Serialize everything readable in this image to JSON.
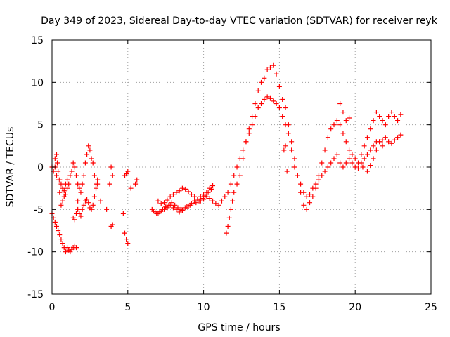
{
  "chart_data": {
    "type": "scatter",
    "title": "Day 349 of 2023, Sidereal Day-to-day VTEC variation (SDTVAR) for receiver reyk",
    "xlabel": "GPS time / hours",
    "ylabel": "SDTVAR / TECUs",
    "xlim": [
      0,
      25
    ],
    "ylim": [
      -15,
      15
    ],
    "x_ticks": [
      0,
      5,
      10,
      15,
      20,
      25
    ],
    "y_ticks": [
      -15,
      -10,
      -5,
      0,
      5,
      10,
      15
    ],
    "x_tick_labels": [
      "0",
      "5",
      "10",
      "15",
      "20",
      "25"
    ],
    "y_tick_labels": [
      "-15",
      "-10",
      "-5",
      "0",
      "5",
      "10",
      "15"
    ],
    "grid": true,
    "marker": "+",
    "series": [
      {
        "name": "reyk",
        "color": "#ff0000",
        "x": [
          0.0,
          0.1,
          0.2,
          0.3,
          0.35,
          0.4,
          0.5,
          0.6,
          0.7,
          0.8,
          0.9,
          1.0,
          1.1,
          1.2,
          1.3,
          1.4,
          1.5,
          1.6,
          1.7,
          1.8,
          1.9,
          2.0,
          2.1,
          2.2,
          2.3,
          2.4,
          2.5,
          2.6,
          2.7,
          2.8,
          2.9,
          3.0,
          0.0,
          0.1,
          0.2,
          0.3,
          0.4,
          0.5,
          0.6,
          0.7,
          0.8,
          0.9,
          1.0,
          1.1,
          1.2,
          1.3,
          1.4,
          1.5,
          1.6,
          1.7,
          1.8,
          1.9,
          2.0,
          2.1,
          2.2,
          2.3,
          2.4,
          2.5,
          2.6,
          2.7,
          2.8,
          2.9,
          3.0,
          0.2,
          0.3,
          0.4,
          0.5,
          0.6,
          0.7,
          0.8,
          0.9,
          1.0,
          1.4,
          1.5,
          1.6,
          1.7,
          3.2,
          3.6,
          3.8,
          3.9,
          4.0,
          3.9,
          4.0,
          4.7,
          4.8,
          4.9,
          5.0,
          4.8,
          4.9,
          5.0,
          5.5,
          5.6,
          5.2,
          6.6,
          6.8,
          7.0,
          7.2,
          7.4,
          7.6,
          7.8,
          8.0,
          8.2,
          8.4,
          8.6,
          8.8,
          9.0,
          9.2,
          9.4,
          9.6,
          9.8,
          10.0,
          10.2,
          10.4,
          10.6,
          6.7,
          6.9,
          7.1,
          7.3,
          7.5,
          7.7,
          7.9,
          8.1,
          8.3,
          8.5,
          8.7,
          8.9,
          9.1,
          9.3,
          9.5,
          9.7,
          9.9,
          10.1,
          10.3,
          10.5,
          7.0,
          7.2,
          7.4,
          7.6,
          7.8,
          8.0,
          8.2,
          8.4,
          8.6,
          8.8,
          9.0,
          9.2,
          9.4,
          9.6,
          9.8,
          10.0,
          10.2,
          10.4,
          10.6,
          10.8,
          11.0,
          11.2,
          11.4,
          11.6,
          11.8,
          12.0,
          12.2,
          12.4,
          12.6,
          12.8,
          13.0,
          13.2,
          13.4,
          13.6,
          13.8,
          14.0,
          14.2,
          14.4,
          14.6,
          14.8,
          15.0,
          15.2,
          15.4,
          15.6,
          15.8,
          16.0,
          16.2,
          16.4,
          16.6,
          16.8,
          17.0,
          17.2,
          17.4,
          17.6,
          17.8,
          18.0,
          18.2,
          18.4,
          18.6,
          18.8,
          19.0,
          19.2,
          19.4,
          19.6,
          19.8,
          20.0,
          20.2,
          20.4,
          20.6,
          20.8,
          21.0,
          21.2,
          21.4,
          21.6,
          21.8,
          22.0,
          22.2,
          22.4,
          22.6,
          22.8,
          23.0,
          11.5,
          11.6,
          11.7,
          11.8,
          11.9,
          12.0,
          12.2,
          12.4,
          12.6,
          12.8,
          13.0,
          13.2,
          13.4,
          13.6,
          13.8,
          14.0,
          14.2,
          14.4,
          14.6,
          14.8,
          15.0,
          15.2,
          15.4,
          15.6,
          15.8,
          16.0,
          16.2,
          16.4,
          16.6,
          16.8,
          17.0,
          17.2,
          17.4,
          17.6,
          17.8,
          18.0,
          18.2,
          18.4,
          18.6,
          18.8,
          19.0,
          19.2,
          19.4,
          19.6,
          19.8,
          20.0,
          20.2,
          20.4,
          20.6,
          20.8,
          21.0,
          21.2,
          21.4,
          21.6,
          21.8,
          22.0,
          22.2,
          22.4,
          22.6,
          22.8,
          23.0,
          15.3,
          15.4,
          15.5,
          19.0,
          19.2,
          19.4,
          19.6,
          20.5,
          20.8,
          21.0,
          21.2,
          21.4,
          21.6,
          21.8
        ],
        "y": [
          0.0,
          -0.5,
          1.0,
          -1.0,
          0.5,
          -0.5,
          -1.5,
          -2.0,
          -2.5,
          -2.8,
          -2.0,
          -1.5,
          -2.0,
          -1.0,
          -0.5,
          0.5,
          0.0,
          -1.0,
          -2.0,
          -2.5,
          -3.0,
          -2.0,
          -1.0,
          0.5,
          1.5,
          2.5,
          2.0,
          1.0,
          0.5,
          -1.0,
          -2.0,
          -1.5,
          -5.5,
          -6.0,
          -6.5,
          -7.0,
          -7.5,
          -8.0,
          -8.5,
          -9.0,
          -9.5,
          -10.0,
          -9.5,
          -9.8,
          -10.0,
          -9.7,
          -9.5,
          -9.3,
          -9.5,
          -5.0,
          -5.5,
          -5.8,
          -5.0,
          -4.5,
          -4.0,
          -3.8,
          -4.2,
          -4.8,
          -5.0,
          -4.5,
          -3.5,
          -2.5,
          -2.0,
          0.0,
          1.5,
          -1.5,
          -3.0,
          -4.5,
          -4.0,
          -3.5,
          -3.2,
          -2.5,
          -6.0,
          -6.2,
          -5.5,
          -4.0,
          -4.0,
          -5.0,
          -2.0,
          0.0,
          -1.0,
          -7.0,
          -6.8,
          -5.5,
          -7.8,
          -8.5,
          -9.0,
          -1.0,
          -0.8,
          -0.5,
          -2.0,
          -1.5,
          -2.5,
          -5.0,
          -5.3,
          -5.5,
          -5.2,
          -5.0,
          -4.8,
          -4.5,
          -4.8,
          -5.0,
          -5.3,
          -5.1,
          -4.8,
          -4.6,
          -4.3,
          -4.0,
          -3.8,
          -3.5,
          -3.2,
          -3.0,
          -2.5,
          -2.2,
          -5.2,
          -5.5,
          -5.3,
          -5.0,
          -4.7,
          -4.5,
          -4.2,
          -4.5,
          -4.8,
          -5.0,
          -4.8,
          -4.6,
          -4.5,
          -4.3,
          -4.2,
          -4.0,
          -3.7,
          -3.4,
          -3.0,
          -2.6,
          -4.0,
          -4.3,
          -4.2,
          -3.9,
          -3.5,
          -3.2,
          -3.0,
          -2.8,
          -2.5,
          -2.6,
          -2.9,
          -3.2,
          -3.5,
          -3.8,
          -4.0,
          -3.8,
          -3.5,
          -3.7,
          -4.0,
          -4.3,
          -4.5,
          -4.0,
          -3.5,
          -3.0,
          -2.0,
          -1.0,
          0.0,
          1.0,
          2.0,
          3.0,
          4.0,
          5.0,
          6.0,
          7.0,
          7.5,
          8.0,
          8.3,
          8.1,
          7.8,
          7.5,
          7.0,
          6.0,
          5.0,
          4.0,
          2.0,
          0.0,
          -1.0,
          -2.0,
          -3.0,
          -3.5,
          -3.2,
          -2.5,
          -2.0,
          -1.5,
          -1.0,
          -0.5,
          0.0,
          0.5,
          1.0,
          1.5,
          0.5,
          0.0,
          0.5,
          1.0,
          0.5,
          0.0,
          -0.2,
          0.5,
          1.0,
          1.5,
          2.0,
          2.5,
          3.0,
          3.0,
          3.2,
          3.5,
          3.0,
          2.8,
          3.2,
          3.5,
          3.8,
          -7.8,
          -7.0,
          -6.0,
          -5.0,
          -4.0,
          -3.0,
          -2.0,
          -1.0,
          1.0,
          3.0,
          4.5,
          6.0,
          7.5,
          9.0,
          10.0,
          10.5,
          11.5,
          11.8,
          12.0,
          11.0,
          9.5,
          8.0,
          7.0,
          5.0,
          3.0,
          1.0,
          -1.0,
          -3.0,
          -4.5,
          -5.0,
          -4.2,
          -3.5,
          -2.5,
          -1.0,
          0.5,
          2.0,
          3.5,
          4.5,
          5.0,
          5.5,
          5.0,
          4.0,
          3.0,
          2.0,
          1.5,
          1.0,
          0.5,
          1.5,
          2.5,
          3.5,
          4.5,
          5.5,
          6.5,
          6.0,
          5.5,
          5.0,
          6.0,
          6.5,
          6.0,
          5.5,
          6.2,
          2.0,
          2.5,
          -0.5,
          7.5,
          6.5,
          5.5,
          5.8,
          0.0,
          -0.5,
          0.2,
          1.0,
          2.0,
          3.0,
          2.5
        ]
      }
    ]
  }
}
